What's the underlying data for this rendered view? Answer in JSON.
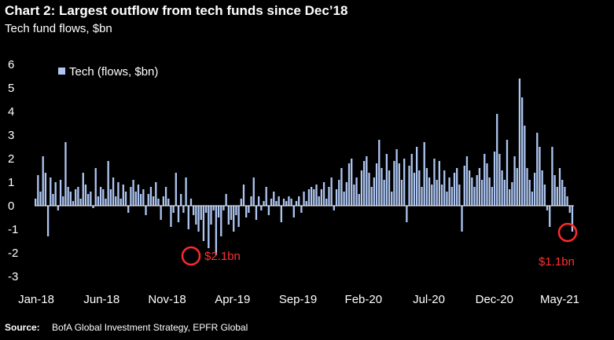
{
  "title": "Chart 2: Largest outflow from tech funds since Dec’18",
  "subtitle": "Tech fund flows, $bn",
  "footer": {
    "source_label": "Source:",
    "source_text": "BofA Global Investment Strategy, EPFR Global"
  },
  "colors": {
    "background": "#000000",
    "bar": "#aec6f2",
    "text": "#ffffff",
    "annotation": "#ff2a2a"
  },
  "chart_data": {
    "type": "bar",
    "title": "Chart 2: Largest outflow from tech funds since Dec’18",
    "subtitle": "Tech fund flows, $bn",
    "xlabel": "",
    "ylabel": "",
    "ylim": [
      -3,
      6
    ],
    "y_ticks": [
      "6",
      "5",
      "4",
      "3",
      "2",
      "1",
      "0",
      "-1",
      "-2",
      "-3"
    ],
    "x_tick_labels": [
      "Jan-18",
      "Jun-18",
      "Nov-18",
      "Apr-19",
      "Sep-19",
      "Feb-20",
      "Jul-20",
      "Dec-20",
      "May-21"
    ],
    "legend": {
      "label": "Tech (flows, $bn)",
      "position": "top-left"
    },
    "grid": false,
    "series": [
      {
        "name": "Tech (flows, $bn)",
        "color": "#aec6f2",
        "values": [
          0.3,
          1.3,
          0.6,
          2.1,
          1.4,
          -1.3,
          1.2,
          0.5,
          1.0,
          -0.2,
          1.1,
          0.4,
          2.7,
          0.8,
          0.6,
          0.2,
          0.7,
          0.8,
          0.3,
          1.4,
          0.9,
          0.5,
          0.6,
          -0.1,
          1.6,
          0.4,
          0.8,
          0.7,
          0.3,
          1.9,
          0.7,
          1.2,
          0.4,
          1.0,
          0.3,
          0.9,
          0.6,
          -0.3,
          0.8,
          1.1,
          0.6,
          0.9,
          0.5,
          0.7,
          -0.4,
          0.5,
          0.8,
          0.4,
          1.0,
          0.3,
          -0.6,
          0.4,
          0.8,
          0.3,
          -0.9,
          -0.3,
          1.4,
          -0.7,
          0.5,
          -0.3,
          1.2,
          -1.0,
          0.3,
          -0.4,
          -0.8,
          -1.1,
          -0.6,
          -1.5,
          -0.3,
          -1.8,
          -0.8,
          -0.2,
          -2.1,
          -0.5,
          -1.3,
          -0.2,
          0.5,
          -0.8,
          -0.6,
          -1.1,
          -0.4,
          -0.9,
          0.3,
          0.9,
          -0.5,
          -0.3,
          0.4,
          1.2,
          -0.6,
          0.4,
          -0.2,
          0.2,
          0.8,
          -0.4,
          0.3,
          0.6,
          0.2,
          0.4,
          -0.7,
          0.3,
          0.2,
          0.4,
          0.3,
          -0.5,
          0.2,
          0.4,
          -0.3,
          0.6,
          0.2,
          0.7,
          0.8,
          0.7,
          0.9,
          0.4,
          0.7,
          1.0,
          0.3,
          0.8,
          1.2,
          -0.2,
          0.7,
          1.1,
          1.6,
          0.6,
          1.0,
          1.8,
          2.0,
          0.9,
          1.2,
          0.5,
          1.5,
          1.9,
          2.1,
          1.4,
          0.8,
          1.2,
          1.8,
          2.8,
          1.6,
          1.1,
          2.2,
          1.5,
          0.6,
          1.9,
          2.4,
          1.8,
          1.1,
          2.0,
          -0.7,
          1.7,
          2.2,
          1.4,
          2.5,
          1.5,
          0.8,
          2.7,
          1.6,
          1.2,
          0.9,
          2.0,
          1.1,
          1.9,
          0.9,
          1.5,
          0.6,
          1.2,
          0.8,
          1.4,
          1.6,
          0.9,
          -1.1,
          1.7,
          2.1,
          1.5,
          1.2,
          0.8,
          1.3,
          1.6,
          1.1,
          2.2,
          1.8,
          1.2,
          0.8,
          2.3,
          3.9,
          2.2,
          1.5,
          1.1,
          2.8,
          0.7,
          1.0,
          2.1,
          1.6,
          5.4,
          4.6,
          3.4,
          1.6,
          1.1,
          0.6,
          1.4,
          3.1,
          2.5,
          1.5,
          0.9,
          -0.2,
          -0.9,
          2.5,
          1.3,
          0.8,
          1.6,
          1.1,
          0.8,
          0.4,
          -0.3,
          -1.1
        ]
      }
    ],
    "annotations": [
      {
        "label": "$2.1bn",
        "at_value": -2.1
      },
      {
        "label": "$1.1bn",
        "at_value": -1.1
      }
    ]
  }
}
